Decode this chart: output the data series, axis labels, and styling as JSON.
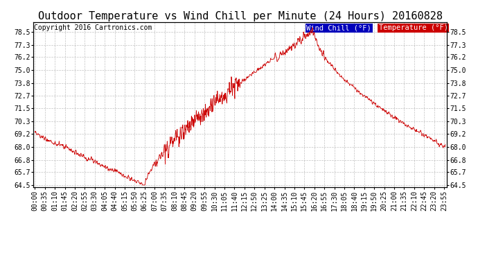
{
  "title": "Outdoor Temperature vs Wind Chill per Minute (24 Hours) 20160828",
  "copyright": "Copyright 2016 Cartronics.com",
  "y_ticks": [
    78.5,
    77.3,
    76.2,
    75.0,
    73.8,
    72.7,
    71.5,
    70.3,
    69.2,
    68.0,
    66.8,
    65.7,
    64.5
  ],
  "ylim": [
    64.3,
    79.4
  ],
  "legend_labels": [
    "Wind Chill (°F)",
    "Temperature (°F)"
  ],
  "legend_bg_colors": [
    "#0000bb",
    "#cc0000"
  ],
  "line_color": "#cc0000",
  "background_color": "#ffffff",
  "grid_color": "#999999",
  "title_fontsize": 11,
  "tick_label_fontsize": 7,
  "copyright_fontsize": 7,
  "num_points": 1440,
  "x_tick_step_minutes": 35
}
